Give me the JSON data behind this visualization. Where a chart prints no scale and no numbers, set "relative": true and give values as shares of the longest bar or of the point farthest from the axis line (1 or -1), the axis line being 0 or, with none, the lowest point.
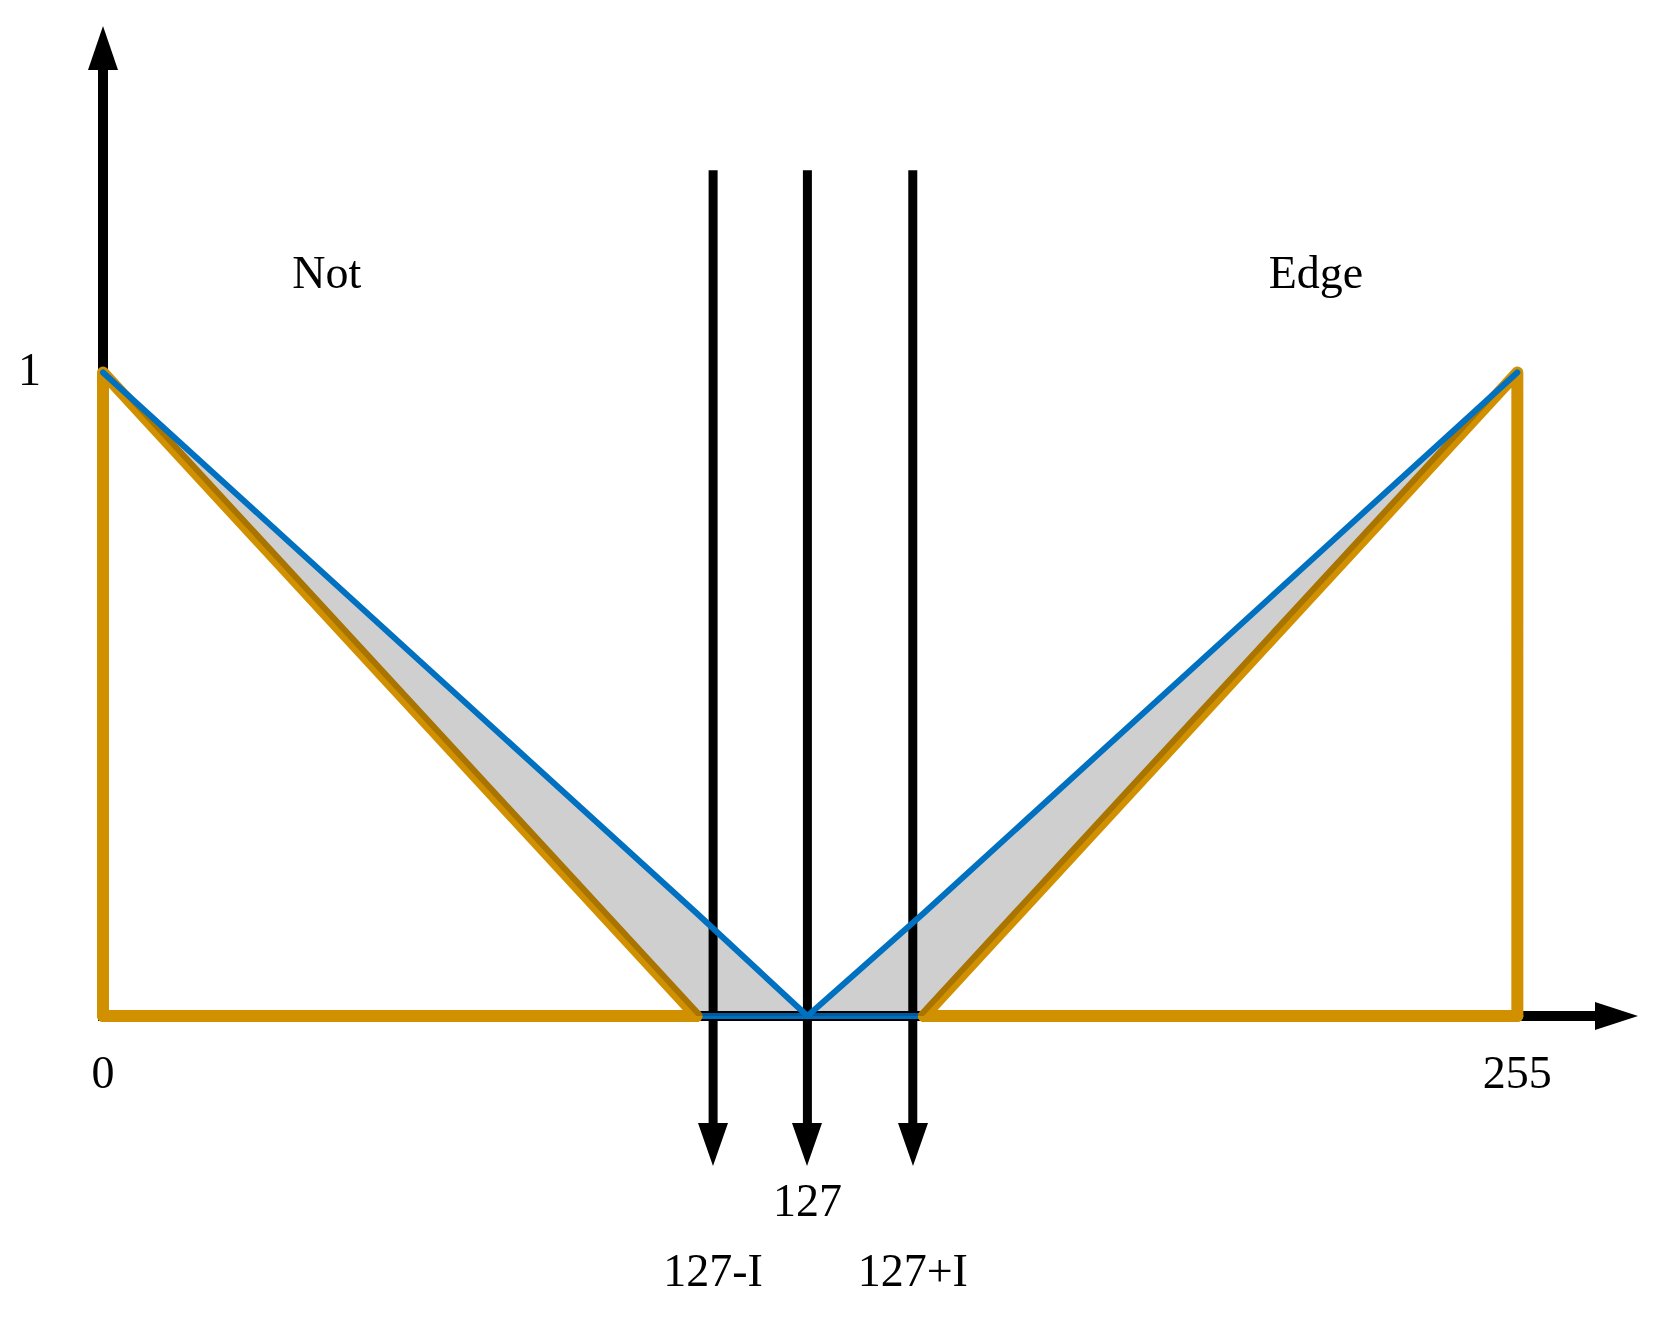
{
  "chart_data": {
    "type": "line",
    "relative": true,
    "annotations": [
      {
        "text": "1",
        "x": 0,
        "y": 1
      },
      "Not",
      "Edge"
    ],
    "xlim": [
      0,
      269
    ],
    "xticks": [
      0,
      255
    ],
    "marker": "none",
    "line_style": "solid",
    "ref_lines": [
      {
        "axis": "x",
        "value": 110,
        "label": "127-I",
        "color": "#000000"
      },
      {
        "axis": "x",
        "value": 127,
        "label": "127",
        "color": "#000000"
      },
      {
        "axis": "x",
        "value": 146,
        "label": "127+I",
        "color": "#000000"
      }
    ],
    "series": [
      {
        "color": "#0070c0",
        "x": [
          107,
          148
        ],
        "values": [
          0,
          0
        ]
      },
      {
        "color": "#d09000",
        "x": [
          0,
          107
        ],
        "values": [
          0,
          0
        ]
      },
      {
        "color": "#d09000",
        "x": [
          148,
          255
        ],
        "values": [
          0,
          0
        ]
      },
      {
        "color": "#d09000",
        "x": [
          0,
          0,
          107
        ],
        "values": [
          0,
          1,
          0
        ]
      },
      {
        "color": "#d09000",
        "x": [
          148,
          255,
          255
        ],
        "values": [
          0,
          1,
          0
        ]
      },
      {
        "color": "#0070c0",
        "x": [
          0,
          107,
          127,
          148,
          255
        ],
        "values": [
          1,
          0.16,
          0,
          0.16,
          1
        ],
        "lower": [
          1,
          0,
          0,
          0,
          1
        ],
        "upper": [
          1,
          0.16,
          0,
          0.16,
          1
        ]
      }
    ]
  }
}
